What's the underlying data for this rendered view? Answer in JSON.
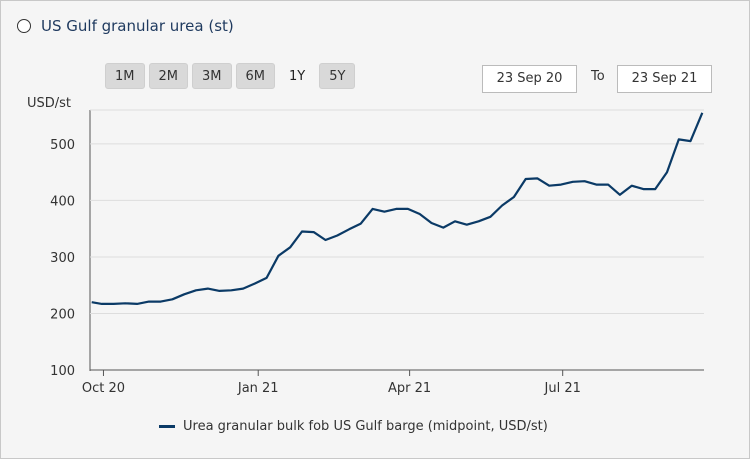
{
  "header": {
    "title": "US Gulf granular urea (st)"
  },
  "range_buttons": [
    "1M",
    "2M",
    "3M",
    "6M",
    "1Y",
    "5Y"
  ],
  "selected_range": "1Y",
  "date_range": {
    "from": "23 Sep 20",
    "to_label": "To",
    "to": "23 Sep 21"
  },
  "legend": {
    "label": "Urea granular bulk fob US Gulf barge (midpoint, USD/st)"
  },
  "colors": {
    "line": "#0b3a66",
    "background": "#f5f5f5",
    "grid": "#dddddd"
  },
  "chart_data": {
    "type": "line",
    "ylabel": "USD/st",
    "ylim": [
      100,
      560
    ],
    "yticks": [
      100,
      200,
      300,
      400,
      500
    ],
    "xlim": [
      "2020-09-23",
      "2021-09-23"
    ],
    "xticks": [
      {
        "label": "Oct 20",
        "date": "2020-10-01"
      },
      {
        "label": "Jan 21",
        "date": "2021-01-01"
      },
      {
        "label": "Apr 21",
        "date": "2021-04-01"
      },
      {
        "label": "Jul 21",
        "date": "2021-07-01"
      }
    ],
    "grid": "horizontal",
    "series": [
      {
        "name": "Urea granular bulk fob US Gulf barge (midpoint, USD/st)",
        "points": [
          [
            "2020-09-24",
            220
          ],
          [
            "2020-09-30",
            217
          ],
          [
            "2020-10-07",
            217
          ],
          [
            "2020-10-14",
            218
          ],
          [
            "2020-10-21",
            217
          ],
          [
            "2020-10-28",
            221
          ],
          [
            "2020-11-04",
            221
          ],
          [
            "2020-11-11",
            225
          ],
          [
            "2020-11-18",
            234
          ],
          [
            "2020-11-25",
            241
          ],
          [
            "2020-12-02",
            244
          ],
          [
            "2020-12-09",
            240
          ],
          [
            "2020-12-16",
            241
          ],
          [
            "2020-12-23",
            244
          ],
          [
            "2020-12-30",
            253
          ],
          [
            "2021-01-06",
            263
          ],
          [
            "2021-01-13",
            302
          ],
          [
            "2021-01-20",
            317
          ],
          [
            "2021-01-27",
            345
          ],
          [
            "2021-02-03",
            344
          ],
          [
            "2021-02-10",
            330
          ],
          [
            "2021-02-17",
            338
          ],
          [
            "2021-02-24",
            349
          ],
          [
            "2021-03-03",
            359
          ],
          [
            "2021-03-10",
            385
          ],
          [
            "2021-03-17",
            380
          ],
          [
            "2021-03-24",
            385
          ],
          [
            "2021-03-31",
            385
          ],
          [
            "2021-04-07",
            376
          ],
          [
            "2021-04-14",
            360
          ],
          [
            "2021-04-21",
            352
          ],
          [
            "2021-04-28",
            363
          ],
          [
            "2021-05-05",
            357
          ],
          [
            "2021-05-12",
            363
          ],
          [
            "2021-05-19",
            371
          ],
          [
            "2021-05-26",
            391
          ],
          [
            "2021-06-02",
            406
          ],
          [
            "2021-06-09",
            438
          ],
          [
            "2021-06-16",
            439
          ],
          [
            "2021-06-23",
            426
          ],
          [
            "2021-06-30",
            428
          ],
          [
            "2021-07-07",
            433
          ],
          [
            "2021-07-14",
            434
          ],
          [
            "2021-07-21",
            428
          ],
          [
            "2021-07-28",
            428
          ],
          [
            "2021-08-04",
            410
          ],
          [
            "2021-08-11",
            426
          ],
          [
            "2021-08-18",
            420
          ],
          [
            "2021-08-25",
            420
          ],
          [
            "2021-09-01",
            450
          ],
          [
            "2021-09-08",
            508
          ],
          [
            "2021-09-15",
            505
          ],
          [
            "2021-09-22",
            555
          ]
        ]
      }
    ]
  }
}
